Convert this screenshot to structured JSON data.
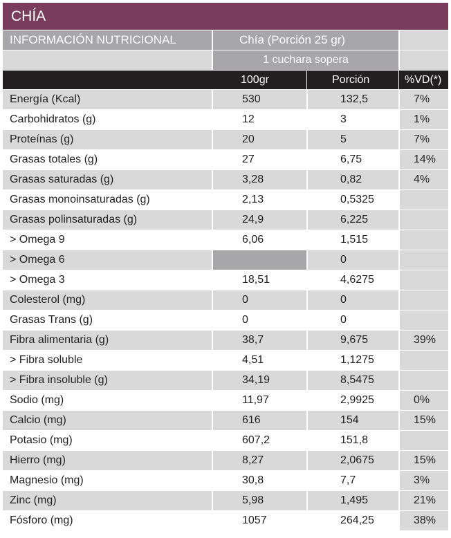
{
  "title": "CHÍA",
  "header": {
    "section_label": "INFORMACIÓN NUTRICIONAL",
    "product_label": "Chía (Porción 25 gr)",
    "serving_label": "1 cuchara sopera",
    "col_100g": "100gr",
    "col_portion": "Porción",
    "col_vd": "%VD(*)"
  },
  "rows": [
    {
      "name": "Energía (Kcal)",
      "g100": "530",
      "portion": "132,5",
      "vd": "7%"
    },
    {
      "name": "Carbohidratos (g)",
      "g100": "12",
      "portion": "3",
      "vd": "1%"
    },
    {
      "name": "Proteínas (g)",
      "g100": "20",
      "portion": "5",
      "vd": "7%"
    },
    {
      "name": "Grasas totales (g)",
      "g100": "27",
      "portion": "6,75",
      "vd": "14%"
    },
    {
      "name": "Grasas saturadas (g)",
      "g100": "3,28",
      "portion": "0,82",
      "vd": "4%"
    },
    {
      "name": "Grasas monoinsaturadas (g)",
      "g100": "2,13",
      "portion": "0,5325",
      "vd": ""
    },
    {
      "name": "Grasas polinsaturadas (g)",
      "g100": "24,9",
      "portion": "6,225",
      "vd": ""
    },
    {
      "name": "> Omega 9",
      "g100": "6,06",
      "portion": "1,515",
      "vd": ""
    },
    {
      "name": "> Omega 6",
      "g100": "",
      "portion": "0",
      "vd": ""
    },
    {
      "name": "> Omega 3",
      "g100": "18,51",
      "portion": "4,6275",
      "vd": ""
    },
    {
      "name": "Colesterol (mg)",
      "g100": "0",
      "portion": "0",
      "vd": ""
    },
    {
      "name": "Grasas Trans (g)",
      "g100": "0",
      "portion": "0",
      "vd": ""
    },
    {
      "name": "Fibra alimentaria (g)",
      "g100": "38,7",
      "portion": "9,675",
      "vd": "39%"
    },
    {
      "name": "> Fibra soluble",
      "g100": "4,51",
      "portion": "1,1275",
      "vd": ""
    },
    {
      "name": "> Fibra insoluble (g)",
      "g100": "34,19",
      "portion": "8,5475",
      "vd": ""
    },
    {
      "name": "Sodio (mg)",
      "g100": "11,97",
      "portion": "2,9925",
      "vd": "0%"
    },
    {
      "name": "Calcio (mg)",
      "g100": "616",
      "portion": "154",
      "vd": "15%"
    },
    {
      "name": "Potasio (mg)",
      "g100": "607,2",
      "portion": "151,8",
      "vd": ""
    },
    {
      "name": "Hierro (mg)",
      "g100": "8,27",
      "portion": "2,0675",
      "vd": "15%"
    },
    {
      "name": "Magnesio (mg)",
      "g100": "30,8",
      "portion": "7,7",
      "vd": "3%"
    },
    {
      "name": "Zinc (mg)",
      "g100": "5,98",
      "portion": "1,495",
      "vd": "21%"
    },
    {
      "name": "Fósforo (mg)",
      "g100": "1057",
      "portion": "264,25",
      "vd": "38%"
    }
  ],
  "colors": {
    "title_bg": "#7a3c5c",
    "header_gray": "#a7a6a8",
    "column_header_bg": "#231f20",
    "row_shade": "#d9d9d9"
  }
}
